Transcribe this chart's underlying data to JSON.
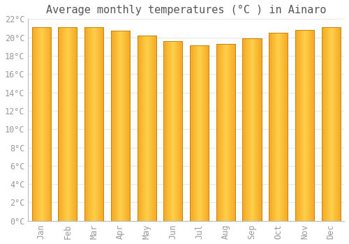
{
  "title": "Average monthly temperatures (°C ) in Ainaro",
  "months": [
    "Jan",
    "Feb",
    "Mar",
    "Apr",
    "May",
    "Jun",
    "Jul",
    "Aug",
    "Sep",
    "Oct",
    "Nov",
    "Dec"
  ],
  "temperatures": [
    21.1,
    21.1,
    21.1,
    20.7,
    20.2,
    19.6,
    19.1,
    19.3,
    19.9,
    20.5,
    20.8,
    21.1
  ],
  "bar_color_left": "#F5A623",
  "bar_color_center": "#FFD04A",
  "bar_color_right": "#F5A623",
  "bar_edge_color": "#C8840A",
  "ylim": [
    0,
    22
  ],
  "yticks": [
    0,
    2,
    4,
    6,
    8,
    10,
    12,
    14,
    16,
    18,
    20,
    22
  ],
  "ytick_labels": [
    "0°C",
    "2°C",
    "4°C",
    "6°C",
    "8°C",
    "10°C",
    "12°C",
    "14°C",
    "16°C",
    "18°C",
    "20°C",
    "22°C"
  ],
  "background_color": "#ffffff",
  "grid_color": "#e8e8e8",
  "title_fontsize": 11,
  "tick_fontsize": 8.5,
  "font_family": "monospace",
  "tick_color": "#999999",
  "title_color": "#555555"
}
